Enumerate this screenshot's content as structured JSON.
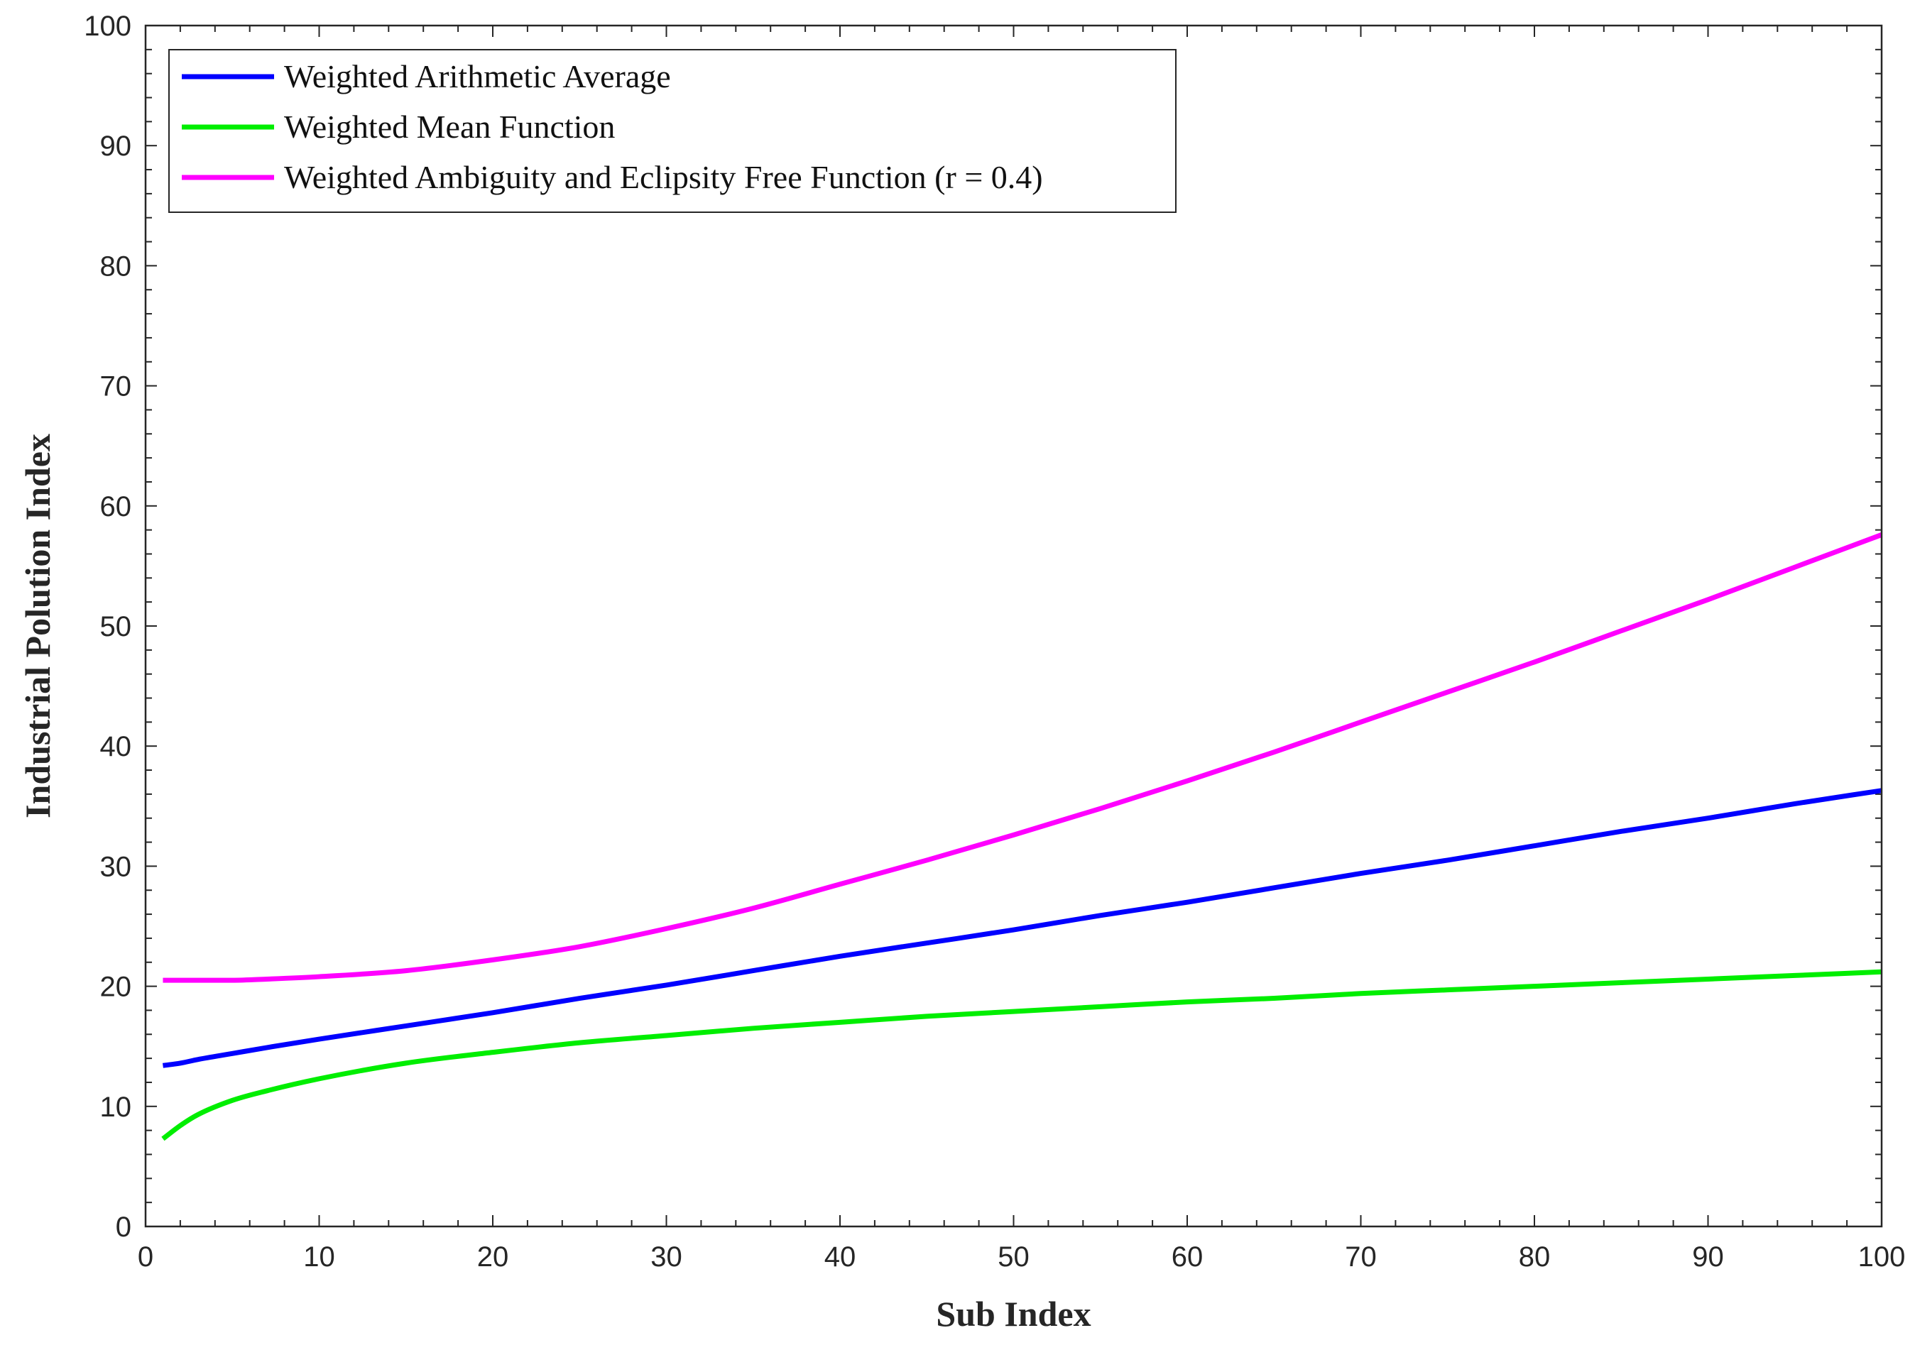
{
  "chart_data": {
    "type": "line",
    "xlabel": "Sub Index",
    "ylabel": "Industrial Polution Index",
    "xlim": [
      0,
      100
    ],
    "ylim": [
      0,
      100
    ],
    "x_ticks": [
      0,
      10,
      20,
      30,
      40,
      50,
      60,
      70,
      80,
      90,
      100
    ],
    "y_ticks": [
      0,
      10,
      20,
      30,
      40,
      50,
      60,
      70,
      80,
      90,
      100
    ],
    "grid": false,
    "legend_position": "top-left",
    "x": [
      1,
      2,
      3,
      5,
      7,
      10,
      15,
      20,
      25,
      30,
      35,
      40,
      45,
      50,
      55,
      60,
      65,
      70,
      75,
      80,
      85,
      90,
      95,
      100
    ],
    "series": [
      {
        "name": "Weighted Arithmetic Average",
        "color": "#0000ff",
        "values": [
          13.4,
          13.6,
          13.9,
          14.4,
          14.9,
          15.6,
          16.7,
          17.8,
          19.0,
          20.1,
          21.3,
          22.5,
          23.6,
          24.7,
          25.9,
          27.0,
          28.2,
          29.4,
          30.5,
          31.7,
          32.9,
          34.0,
          35.2,
          36.3
        ]
      },
      {
        "name": "Weighted Mean Function",
        "color": "#00ee00",
        "values": [
          7.3,
          8.4,
          9.3,
          10.5,
          11.3,
          12.3,
          13.6,
          14.5,
          15.3,
          15.9,
          16.5,
          17.0,
          17.5,
          17.9,
          18.3,
          18.7,
          19.0,
          19.4,
          19.7,
          20.0,
          20.3,
          20.6,
          20.9,
          21.2
        ]
      },
      {
        "name": "Weighted Ambiguity and Eclipsity Free Function (r = 0.4)",
        "color": "#ff00ff",
        "values": [
          20.5,
          20.5,
          20.5,
          20.5,
          20.6,
          20.8,
          21.3,
          22.2,
          23.3,
          24.8,
          26.5,
          28.5,
          30.5,
          32.6,
          34.8,
          37.1,
          39.5,
          42.0,
          44.5,
          47.0,
          49.6,
          52.2,
          54.9,
          57.6
        ]
      }
    ]
  }
}
